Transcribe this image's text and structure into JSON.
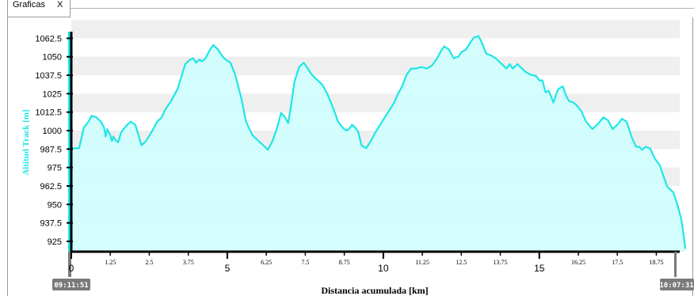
{
  "tab": {
    "label": "Graficas",
    "close": "X"
  },
  "colors": {
    "line": "#1fe6e6",
    "fill": "#cffefe",
    "axis": "#000000",
    "band": "#efefef",
    "badge": "#7a7a7a"
  },
  "chart_data": {
    "type": "area",
    "title": "",
    "xlabel": "Distancia acumulada [km]",
    "ylabel": "Altitud Track [m]",
    "xlim": [
      0,
      19.2
    ],
    "ylim": [
      918,
      1067
    ],
    "y_ticks": [
      "925",
      "937.5",
      "950",
      "962.5",
      "975",
      "987.5",
      "1000",
      "1012.5",
      "1025",
      "1037.5",
      "1050",
      "1062.5"
    ],
    "x_major_ticks": [
      "0",
      "5",
      "10",
      "15"
    ],
    "x_minor_ticks": [
      "1.25",
      "2.5",
      "3.75",
      "6.25",
      "7.5",
      "8.75",
      "11.25",
      "12.5",
      "13.75",
      "16.25",
      "17.5",
      "18.75"
    ],
    "start_time": "09:11:51",
    "end_time": "10:07:31",
    "points": [
      [
        0.0,
        988
      ],
      [
        0.25,
        988
      ],
      [
        0.4,
        1002
      ],
      [
        0.55,
        1006
      ],
      [
        0.65,
        1010
      ],
      [
        0.8,
        1009
      ],
      [
        0.95,
        1006
      ],
      [
        1.05,
        1002
      ],
      [
        1.1,
        996
      ],
      [
        1.15,
        1001
      ],
      [
        1.25,
        997
      ],
      [
        1.3,
        993
      ],
      [
        1.35,
        996
      ],
      [
        1.4,
        994
      ],
      [
        1.5,
        992
      ],
      [
        1.6,
        999
      ],
      [
        1.75,
        1003
      ],
      [
        1.9,
        1006
      ],
      [
        2.05,
        1004
      ],
      [
        2.15,
        997
      ],
      [
        2.25,
        990
      ],
      [
        2.4,
        993
      ],
      [
        2.6,
        1000
      ],
      [
        2.75,
        1006
      ],
      [
        2.9,
        1009
      ],
      [
        3.0,
        1014
      ],
      [
        3.2,
        1020
      ],
      [
        3.4,
        1028
      ],
      [
        3.55,
        1038
      ],
      [
        3.65,
        1045
      ],
      [
        3.8,
        1048
      ],
      [
        3.9,
        1049
      ],
      [
        4.0,
        1046
      ],
      [
        4.1,
        1048
      ],
      [
        4.2,
        1047
      ],
      [
        4.3,
        1049
      ],
      [
        4.45,
        1055
      ],
      [
        4.55,
        1058
      ],
      [
        4.7,
        1055
      ],
      [
        4.85,
        1050
      ],
      [
        4.95,
        1048
      ],
      [
        5.1,
        1046
      ],
      [
        5.25,
        1038
      ],
      [
        5.45,
        1022
      ],
      [
        5.6,
        1006
      ],
      [
        5.8,
        997
      ],
      [
        6.0,
        993
      ],
      [
        6.2,
        989
      ],
      [
        6.3,
        987
      ],
      [
        6.45,
        993
      ],
      [
        6.6,
        1002
      ],
      [
        6.72,
        1012
      ],
      [
        6.85,
        1009
      ],
      [
        6.95,
        1005
      ],
      [
        7.05,
        1018
      ],
      [
        7.15,
        1033
      ],
      [
        7.3,
        1043
      ],
      [
        7.45,
        1046
      ],
      [
        7.55,
        1043
      ],
      [
        7.7,
        1038
      ],
      [
        7.9,
        1034
      ],
      [
        8.05,
        1031
      ],
      [
        8.2,
        1025
      ],
      [
        8.4,
        1015
      ],
      [
        8.55,
        1006
      ],
      [
        8.7,
        1002
      ],
      [
        8.8,
        1000
      ],
      [
        8.9,
        1001
      ],
      [
        9.0,
        1004
      ],
      [
        9.1,
        1002
      ],
      [
        9.2,
        999
      ],
      [
        9.3,
        990
      ],
      [
        9.45,
        988
      ],
      [
        9.6,
        993
      ],
      [
        9.75,
        999
      ],
      [
        9.9,
        1004
      ],
      [
        10.05,
        1009
      ],
      [
        10.2,
        1014
      ],
      [
        10.35,
        1019
      ],
      [
        10.45,
        1024
      ],
      [
        10.6,
        1030
      ],
      [
        10.75,
        1038
      ],
      [
        10.9,
        1042
      ],
      [
        11.05,
        1042
      ],
      [
        11.2,
        1043
      ],
      [
        11.4,
        1042
      ],
      [
        11.55,
        1044
      ],
      [
        11.7,
        1048
      ],
      [
        11.85,
        1054
      ],
      [
        11.95,
        1057
      ],
      [
        12.1,
        1055
      ],
      [
        12.25,
        1049
      ],
      [
        12.4,
        1050
      ],
      [
        12.5,
        1053
      ],
      [
        12.65,
        1055
      ],
      [
        12.8,
        1060
      ],
      [
        12.9,
        1063
      ],
      [
        13.05,
        1064
      ],
      [
        13.15,
        1060
      ],
      [
        13.3,
        1052
      ],
      [
        13.45,
        1051
      ],
      [
        13.6,
        1049
      ],
      [
        13.75,
        1046
      ],
      [
        13.85,
        1044
      ],
      [
        13.95,
        1042
      ],
      [
        14.05,
        1045
      ],
      [
        14.15,
        1042
      ],
      [
        14.3,
        1045
      ],
      [
        14.4,
        1043
      ],
      [
        14.55,
        1040
      ],
      [
        14.7,
        1038
      ],
      [
        14.9,
        1037
      ],
      [
        15.0,
        1034
      ],
      [
        15.1,
        1034
      ],
      [
        15.2,
        1026
      ],
      [
        15.3,
        1027
      ],
      [
        15.45,
        1019
      ],
      [
        15.6,
        1028
      ],
      [
        15.75,
        1030
      ],
      [
        15.85,
        1024
      ],
      [
        15.95,
        1020
      ],
      [
        16.1,
        1019
      ],
      [
        16.2,
        1017
      ],
      [
        16.35,
        1013
      ],
      [
        16.5,
        1006
      ],
      [
        16.7,
        1001
      ],
      [
        16.9,
        1005
      ],
      [
        17.05,
        1009
      ],
      [
        17.2,
        1007
      ],
      [
        17.35,
        1001
      ],
      [
        17.5,
        1004
      ],
      [
        17.65,
        1008
      ],
      [
        17.8,
        1006
      ],
      [
        17.95,
        996
      ],
      [
        18.1,
        989
      ],
      [
        18.2,
        989
      ],
      [
        18.3,
        987
      ],
      [
        18.4,
        989
      ],
      [
        18.55,
        988
      ],
      [
        18.7,
        981
      ],
      [
        18.85,
        977
      ],
      [
        19.0,
        968
      ],
      [
        19.1,
        962
      ],
      [
        19.2,
        960
      ],
      [
        19.3,
        958
      ],
      [
        19.45,
        948
      ],
      [
        19.55,
        940
      ],
      [
        19.62,
        930
      ],
      [
        19.68,
        920
      ]
    ]
  }
}
